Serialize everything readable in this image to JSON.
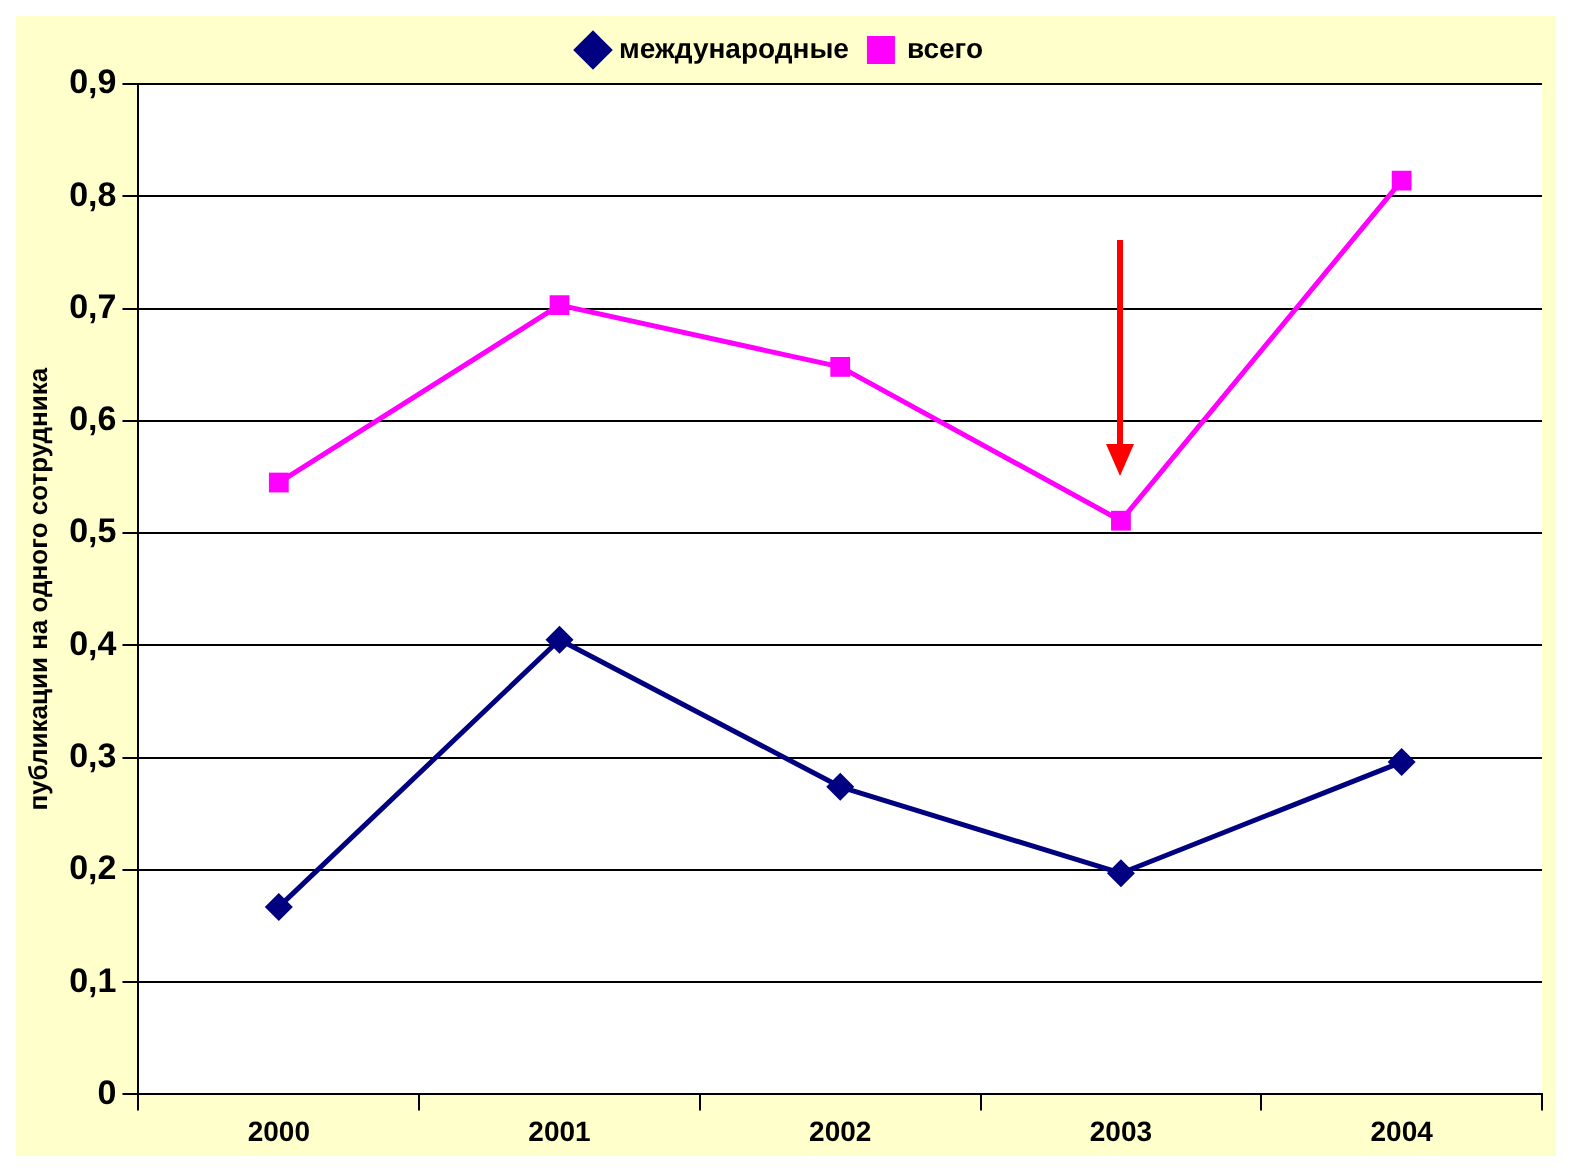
{
  "chart_data": {
    "type": "line",
    "ylabel": "публикации на одного сотрудника",
    "categories": [
      "2000",
      "2001",
      "2002",
      "2003",
      "2004"
    ],
    "series": [
      {
        "name": "международные",
        "color": "#000080",
        "marker": "diamond",
        "values": [
          0.167,
          0.405,
          0.274,
          0.197,
          0.296
        ]
      },
      {
        "name": "всего",
        "color": "#ff00ff",
        "marker": "square",
        "values": [
          0.545,
          0.703,
          0.648,
          0.511,
          0.814
        ]
      }
    ],
    "ylim": [
      0,
      0.9
    ],
    "yticks": [
      {
        "value": 0,
        "label": "0"
      },
      {
        "value": 0.1,
        "label": "0,1"
      },
      {
        "value": 0.2,
        "label": "0,2"
      },
      {
        "value": 0.3,
        "label": "0,3"
      },
      {
        "value": 0.4,
        "label": "0,4"
      },
      {
        "value": 0.5,
        "label": "0,5"
      },
      {
        "value": 0.6,
        "label": "0,6"
      },
      {
        "value": 0.7,
        "label": "0,7"
      },
      {
        "value": 0.8,
        "label": "0,8"
      },
      {
        "value": 0.9,
        "label": "0,9"
      }
    ],
    "grid": "y",
    "legend": "top",
    "line_style": "solid"
  }
}
